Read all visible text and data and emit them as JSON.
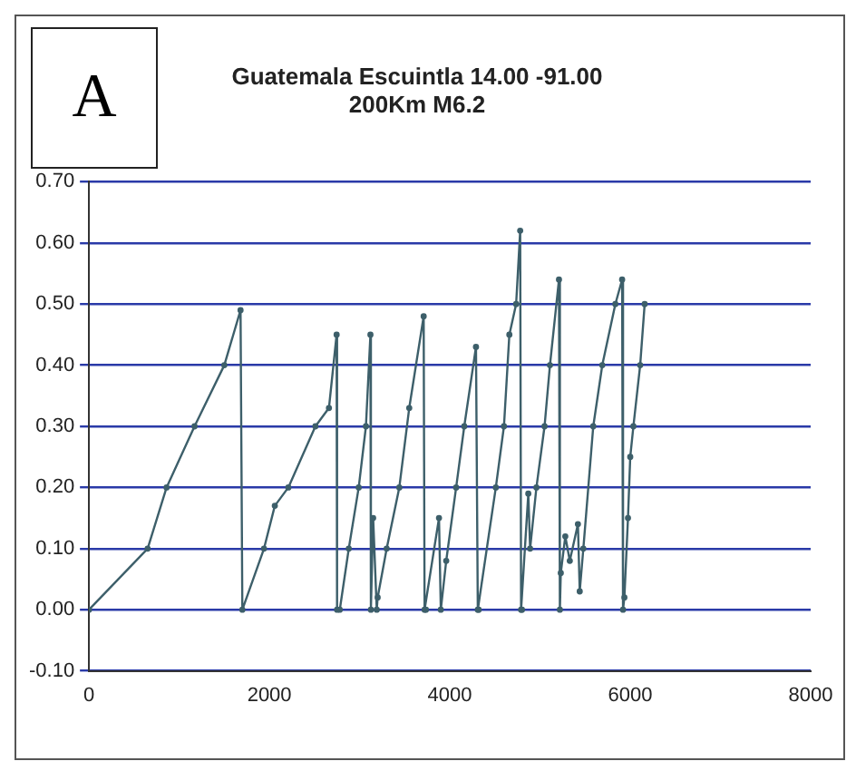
{
  "chart_data": {
    "type": "line",
    "title": [
      "Guatemala Escuintla 14.00 -91.00",
      "200Km M6.2"
    ],
    "annotations": [
      "A"
    ],
    "series": [
      {
        "color": "#3d5f6a",
        "x": [
          0,
          650,
          860,
          1170,
          1500,
          1680,
          1700,
          1940,
          2060,
          2210,
          2510,
          2660,
          2745,
          2750,
          2780,
          2880,
          2990,
          3070,
          3120,
          3125,
          3150,
          3190,
          3200,
          3300,
          3440,
          3550,
          3710,
          3720,
          3735,
          3880,
          3900,
          3960,
          4070,
          4160,
          4290,
          4310,
          4320,
          4510,
          4600,
          4660,
          4735,
          4780,
          4790,
          4800,
          4870,
          4890,
          4960,
          5050,
          5110,
          5210,
          5220,
          5230,
          5280,
          5330,
          5420,
          5440,
          5480,
          5590,
          5690,
          5835,
          5910,
          5920,
          5935,
          5975,
          6000,
          6035,
          6110,
          6160
        ],
        "values": [
          0,
          0.1,
          0.2,
          0.3,
          0.4,
          0.49,
          0,
          0.1,
          0.17,
          0.2,
          0.3,
          0.33,
          0.45,
          0,
          0,
          0.1,
          0.2,
          0.3,
          0.45,
          0,
          0.15,
          0,
          0.02,
          0.1,
          0.2,
          0.33,
          0.48,
          0,
          0,
          0.15,
          0,
          0.08,
          0.2,
          0.3,
          0.43,
          0,
          0,
          0.2,
          0.3,
          0.45,
          0.5,
          0.62,
          0,
          0,
          0.19,
          0.1,
          0.2,
          0.3,
          0.4,
          0.54,
          0,
          0.06,
          0.12,
          0.08,
          0.14,
          0.03,
          0.1,
          0.3,
          0.4,
          0.5,
          0.54,
          0,
          0.02,
          0.15,
          0.25,
          0.3,
          0.4,
          0.5
        ]
      }
    ],
    "xlim": [
      0,
      8000
    ],
    "xticks": [
      0,
      2000,
      4000,
      6000,
      8000
    ],
    "ylim": [
      -0.1,
      0.7
    ],
    "yticks": [
      {
        "value": -0.1,
        "label": "-0.10"
      },
      {
        "value": 0,
        "label": "0.00"
      },
      {
        "value": 0.1,
        "label": "0.10"
      },
      {
        "value": 0.2,
        "label": "0.20"
      },
      {
        "value": 0.3,
        "label": "0.30"
      },
      {
        "value": 0.4,
        "label": "0.40"
      },
      {
        "value": 0.5,
        "label": "0.50"
      },
      {
        "value": 0.6,
        "label": "0.60"
      },
      {
        "value": 0.7,
        "label": "0.70"
      }
    ],
    "grid": "y",
    "legend": false,
    "marker": "circle",
    "line_style": "solid"
  }
}
